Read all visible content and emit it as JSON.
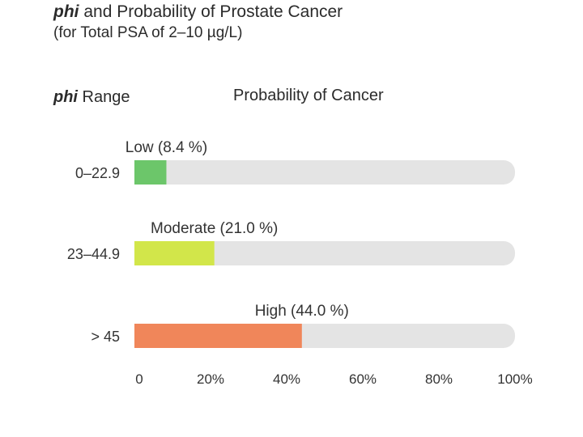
{
  "header": {
    "title_em": "phi",
    "title_rest": " and Probability of Prostate Cancer",
    "subtitle": "(for Total PSA of 2–10 µg/L)",
    "range_em": "phi",
    "range_rest": " Range",
    "probability": "Probability of Cancer"
  },
  "chart_data": {
    "type": "bar",
    "orientation": "horizontal",
    "categories": [
      "0–22.9",
      "23–44.9",
      "> 45"
    ],
    "values": [
      8.4,
      21.0,
      44.0
    ],
    "data_labels": [
      "Low (8.4 %)",
      "Moderate (21.0 %)",
      "High (44.0 %)"
    ],
    "colors": [
      "#6cc66a",
      "#d2e64a",
      "#f0865a"
    ],
    "track_color": "#e4e4e4",
    "xlim": [
      0,
      100
    ],
    "x_ticks": [
      0,
      20,
      40,
      60,
      80,
      100
    ],
    "x_tick_labels": [
      "0",
      "20%",
      "40%",
      "60%",
      "80%",
      "100%"
    ],
    "grid": false,
    "legend": "none"
  }
}
